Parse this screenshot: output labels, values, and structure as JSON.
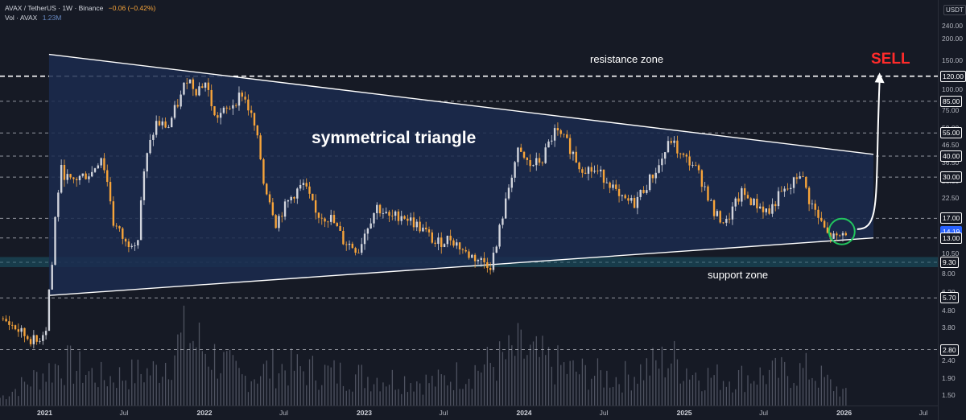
{
  "legend": {
    "symbol": "AVAX / TetherUS · 1W · Binance",
    "change": "−0.06 (−0.42%)",
    "volume_label": "Vol · AVAX",
    "volume_value": "1.23M"
  },
  "currency": "USDT",
  "price_ticks": [
    "240.00",
    "200.00",
    "150.00",
    "100.00",
    "75.00",
    "59.00",
    "46.50",
    "36.50",
    "28.50",
    "22.50",
    "10.50",
    "8.00",
    "6.20",
    "4.80",
    "3.80",
    "2.40",
    "1.90",
    "1.50"
  ],
  "price_badges": [
    {
      "label": "120.00",
      "price": 120,
      "bg": "#161a25",
      "fg": "#ffffff",
      "border": "#ffffff"
    },
    {
      "label": "85.00",
      "price": 85,
      "bg": "#161a25",
      "fg": "#ffffff",
      "border": "#ffffff"
    },
    {
      "label": "55.00",
      "price": 55,
      "bg": "#161a25",
      "fg": "#ffffff",
      "border": "#ffffff"
    },
    {
      "label": "40.00",
      "price": 40,
      "bg": "#161a25",
      "fg": "#ffffff",
      "border": "#ffffff"
    },
    {
      "label": "30.00",
      "price": 30,
      "bg": "#161a25",
      "fg": "#ffffff",
      "border": "#ffffff"
    },
    {
      "label": "17.00",
      "price": 17,
      "bg": "#161a25",
      "fg": "#ffffff",
      "border": "#ffffff"
    },
    {
      "label": "14.19",
      "price": 14.19,
      "bg": "#2962ff",
      "fg": "#ffffff",
      "border": "#2962ff"
    },
    {
      "label": "13.00",
      "price": 13,
      "bg": "#161a25",
      "fg": "#ffffff",
      "border": "#ffffff"
    },
    {
      "label": "9.30",
      "price": 9.3,
      "bg": "#161a25",
      "fg": "#ffffff",
      "border": "#ffffff"
    },
    {
      "label": "5.70",
      "price": 5.7,
      "bg": "#161a25",
      "fg": "#ffffff",
      "border": "#ffffff"
    },
    {
      "label": "2.80",
      "price": 2.8,
      "bg": "#161a25",
      "fg": "#ffffff",
      "border": "#ffffff"
    }
  ],
  "time_ticks": [
    {
      "label": "2021",
      "year": true
    },
    {
      "label": "Jul",
      "year": false
    },
    {
      "label": "2022",
      "year": true
    },
    {
      "label": "Jul",
      "year": false
    },
    {
      "label": "2023",
      "year": true
    },
    {
      "label": "Jul",
      "year": false
    },
    {
      "label": "2024",
      "year": true
    },
    {
      "label": "Jul",
      "year": false
    },
    {
      "label": "2025",
      "year": true
    },
    {
      "label": "Jul",
      "year": false
    },
    {
      "label": "2026",
      "year": true
    },
    {
      "label": "Jul",
      "year": false
    }
  ],
  "annotations": {
    "resistance": "resistance zone",
    "sell": "SELL",
    "triangle": "symmetrical triangle",
    "support": "support zone"
  },
  "colors": {
    "background": "#161a25",
    "up_candle": "#d1d4dc",
    "down_candle": "#f7a43a",
    "triangle_fill": "#1b2c4f",
    "support_band": "#1c5a6b",
    "volume": "#4f5361",
    "circle": "#22c55e",
    "sell": "#ff2b2b"
  },
  "chart_data": {
    "type": "candlestick",
    "symbol": "AVAX/USDT",
    "timeframe": "1W",
    "exchange": "Binance",
    "last_price": 14.19,
    "change": -0.06,
    "change_pct": -0.42,
    "scale": "log",
    "x_range": [
      "2020-09-21",
      "2026-08-03"
    ],
    "y_range": [
      1.5,
      240
    ],
    "horizontal_levels": [
      120,
      85,
      55,
      40,
      30,
      17,
      13,
      9.3,
      5.7,
      2.8
    ],
    "support_zone": [
      8.7,
      10.0
    ],
    "resistance_level": 120,
    "triangle": {
      "upper_line": [
        {
          "date": "2021-01-11",
          "price": 162
        },
        {
          "date": "2026-03-09",
          "price": 41
        }
      ],
      "lower_line": [
        {
          "date": "2021-01-11",
          "price": 5.9
        },
        {
          "date": "2026-03-09",
          "price": 13
        }
      ],
      "filled": true
    },
    "projection": {
      "from": {
        "date": "2026-01-05",
        "price": 14.5
      },
      "to": {
        "date": "2026-03-23",
        "price": 118
      },
      "label": "SELL"
    },
    "price_path": [
      {
        "date": "2020-09-21",
        "price": 4.3
      },
      {
        "date": "2020-10-19",
        "price": 3.9
      },
      {
        "date": "2020-11-16",
        "price": 3.4
      },
      {
        "date": "2020-12-14",
        "price": 3.1
      },
      {
        "date": "2021-01-04",
        "price": 3.8
      },
      {
        "date": "2021-01-18",
        "price": 9.0
      },
      {
        "date": "2021-02-08",
        "price": 33.0
      },
      {
        "date": "2021-03-01",
        "price": 28.0
      },
      {
        "date": "2021-03-22",
        "price": 30.0
      },
      {
        "date": "2021-04-19",
        "price": 32.0
      },
      {
        "date": "2021-05-10",
        "price": 40.0
      },
      {
        "date": "2021-06-07",
        "price": 16.0
      },
      {
        "date": "2021-07-05",
        "price": 12.0
      },
      {
        "date": "2021-08-02",
        "price": 13.0
      },
      {
        "date": "2021-08-23",
        "price": 40.0
      },
      {
        "date": "2021-09-13",
        "price": 63.0
      },
      {
        "date": "2021-10-11",
        "price": 60.0
      },
      {
        "date": "2021-11-08",
        "price": 90.0
      },
      {
        "date": "2021-11-22",
        "price": 118.0
      },
      {
        "date": "2021-12-13",
        "price": 100.0
      },
      {
        "date": "2022-01-03",
        "price": 110.0
      },
      {
        "date": "2022-01-24",
        "price": 68.0
      },
      {
        "date": "2022-02-21",
        "price": 75.0
      },
      {
        "date": "2022-03-28",
        "price": 95.0
      },
      {
        "date": "2022-04-25",
        "price": 60.0
      },
      {
        "date": "2022-05-16",
        "price": 28.0
      },
      {
        "date": "2022-06-13",
        "price": 16.0
      },
      {
        "date": "2022-07-25",
        "price": 24.0
      },
      {
        "date": "2022-08-15",
        "price": 27.0
      },
      {
        "date": "2022-09-12",
        "price": 18.0
      },
      {
        "date": "2022-10-17",
        "price": 17.0
      },
      {
        "date": "2022-11-14",
        "price": 12.5
      },
      {
        "date": "2022-12-19",
        "price": 11.0
      },
      {
        "date": "2023-01-30",
        "price": 20.0
      },
      {
        "date": "2023-02-27",
        "price": 17.0
      },
      {
        "date": "2023-03-27",
        "price": 18.0
      },
      {
        "date": "2023-04-24",
        "price": 16.0
      },
      {
        "date": "2023-05-22",
        "price": 14.0
      },
      {
        "date": "2023-06-12",
        "price": 12.0
      },
      {
        "date": "2023-07-17",
        "price": 13.0
      },
      {
        "date": "2023-08-21",
        "price": 10.5
      },
      {
        "date": "2023-09-25",
        "price": 9.5
      },
      {
        "date": "2023-10-16",
        "price": 9.0
      },
      {
        "date": "2023-10-30",
        "price": 11.5
      },
      {
        "date": "2023-11-20",
        "price": 21.0
      },
      {
        "date": "2023-12-18",
        "price": 42.0
      },
      {
        "date": "2024-01-15",
        "price": 35.0
      },
      {
        "date": "2024-02-12",
        "price": 38.0
      },
      {
        "date": "2024-03-11",
        "price": 56.0
      },
      {
        "date": "2024-04-08",
        "price": 48.0
      },
      {
        "date": "2024-05-06",
        "price": 35.0
      },
      {
        "date": "2024-06-17",
        "price": 32.0
      },
      {
        "date": "2024-07-15",
        "price": 28.0
      },
      {
        "date": "2024-08-05",
        "price": 22.0
      },
      {
        "date": "2024-09-09",
        "price": 21.0
      },
      {
        "date": "2024-10-07",
        "price": 27.0
      },
      {
        "date": "2024-11-04",
        "price": 35.0
      },
      {
        "date": "2024-12-02",
        "price": 50.0
      },
      {
        "date": "2024-12-23",
        "price": 40.0
      },
      {
        "date": "2025-01-20",
        "price": 36.0
      },
      {
        "date": "2025-02-17",
        "price": 26.0
      },
      {
        "date": "2025-03-10",
        "price": 18.0
      },
      {
        "date": "2025-04-07",
        "price": 16.0
      },
      {
        "date": "2025-05-12",
        "price": 24.0
      },
      {
        "date": "2025-06-09",
        "price": 21.0
      },
      {
        "date": "2025-07-14",
        "price": 18.5
      },
      {
        "date": "2025-08-04",
        "price": 23.0
      },
      {
        "date": "2025-09-01",
        "price": 26.0
      },
      {
        "date": "2025-09-22",
        "price": 32.0
      },
      {
        "date": "2025-10-13",
        "price": 22.0
      },
      {
        "date": "2025-11-03",
        "price": 17.0
      },
      {
        "date": "2025-11-24",
        "price": 13.5
      },
      {
        "date": "2025-12-15",
        "price": 12.8
      },
      {
        "date": "2026-01-05",
        "price": 14.19
      }
    ],
    "volume_path": [
      {
        "date": "2020-09-21",
        "value": 0.1
      },
      {
        "date": "2021-02-08",
        "value": 0.55
      },
      {
        "date": "2021-05-17",
        "value": 0.35
      },
      {
        "date": "2021-09-13",
        "value": 0.45
      },
      {
        "date": "2021-11-22",
        "value": 0.9
      },
      {
        "date": "2022-03-28",
        "value": 0.35
      },
      {
        "date": "2022-06-13",
        "value": 0.5
      },
      {
        "date": "2022-11-14",
        "value": 0.4
      },
      {
        "date": "2023-06-12",
        "value": 0.3
      },
      {
        "date": "2023-11-20",
        "value": 0.6
      },
      {
        "date": "2023-12-18",
        "value": 0.7
      },
      {
        "date": "2024-04-15",
        "value": 0.45
      },
      {
        "date": "2024-08-05",
        "value": 0.35
      },
      {
        "date": "2024-12-02",
        "value": 0.6
      },
      {
        "date": "2025-02-03",
        "value": 0.4
      },
      {
        "date": "2025-04-07",
        "value": 0.35
      },
      {
        "date": "2025-10-13",
        "value": 0.45
      },
      {
        "date": "2026-01-05",
        "value": 0.15
      }
    ]
  }
}
